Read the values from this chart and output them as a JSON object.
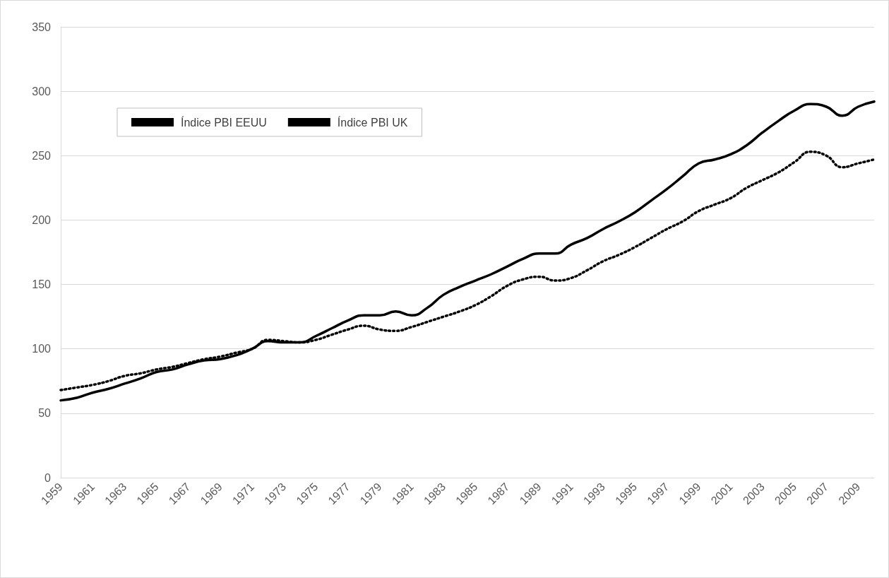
{
  "chart_data": {
    "type": "line",
    "categories": [
      "1959",
      null,
      "1961",
      null,
      "1963",
      null,
      "1965",
      null,
      "1967",
      null,
      "1969",
      null,
      "1971",
      null,
      "1973",
      null,
      "1975",
      null,
      "1977",
      null,
      "1979",
      null,
      "1981",
      null,
      "1983",
      null,
      "1985",
      null,
      "1987",
      null,
      "1989",
      null,
      "1991",
      null,
      "1993",
      null,
      "1995",
      null,
      "1997",
      null,
      "1999",
      null,
      "2001",
      null,
      "2003",
      null,
      "2005",
      null,
      "2007",
      null,
      "2009",
      null
    ],
    "series": [
      {
        "name": "Índice PBI EEUU",
        "color": "#000000",
        "line_style": "solid",
        "values": [
          60,
          62,
          66,
          69,
          73,
          77,
          82,
          84,
          88,
          91,
          92,
          95,
          100,
          106,
          105,
          105,
          110,
          116,
          122,
          126,
          126,
          129,
          126,
          132,
          142,
          148,
          153,
          158,
          164,
          170,
          174,
          174,
          181,
          186,
          193,
          199,
          206,
          215,
          224,
          234,
          244,
          247,
          251,
          258,
          268,
          277,
          285,
          290,
          288,
          281,
          288,
          292
        ]
      },
      {
        "name": "Índice PBI UK",
        "color": "#000000",
        "line_style": "dotted",
        "values": [
          68,
          70,
          72,
          75,
          79,
          81,
          84,
          86,
          89,
          92,
          94,
          97,
          100,
          107,
          106,
          105,
          107,
          111,
          115,
          118,
          115,
          114,
          117,
          121,
          125,
          129,
          134,
          141,
          149,
          154,
          156,
          153,
          155,
          161,
          168,
          173,
          179,
          186,
          193,
          199,
          207,
          212,
          217,
          225,
          231,
          237,
          245,
          253,
          250,
          241,
          244,
          247
        ]
      }
    ],
    "ylim": [
      0,
      350
    ],
    "yticks": [
      0,
      50,
      100,
      150,
      200,
      250,
      300,
      350
    ],
    "grid": "y",
    "legend": "top left",
    "marker": "none"
  }
}
